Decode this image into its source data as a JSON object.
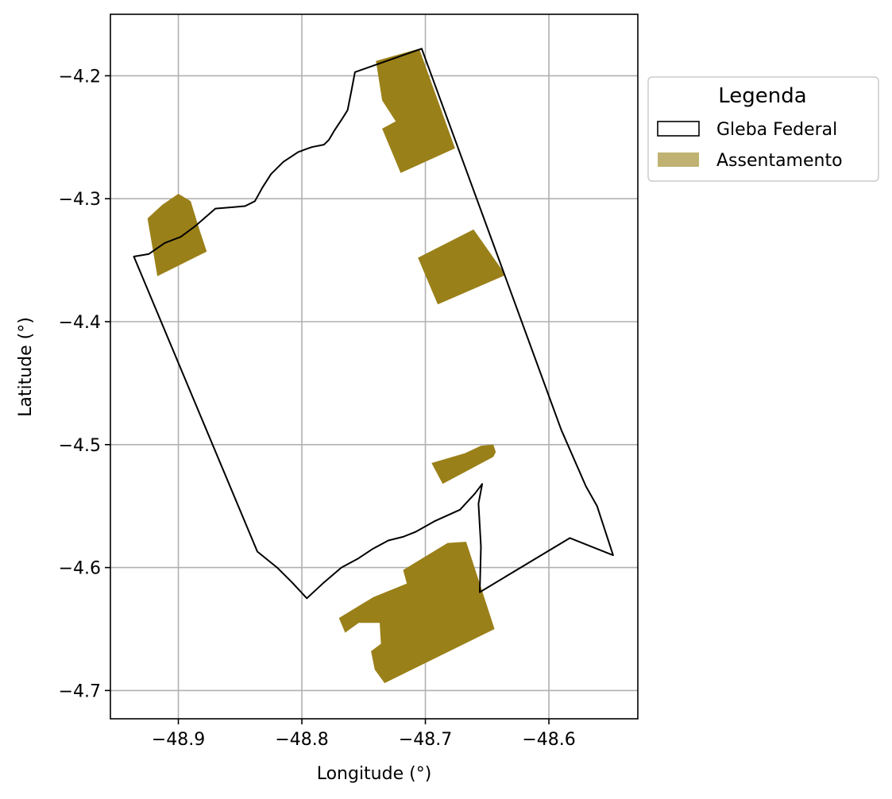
{
  "chart_data": {
    "type": "map",
    "title": "",
    "xlabel": "Longitude (°)",
    "ylabel": "Latitude (°)",
    "xlim": [
      -48.955,
      -48.528
    ],
    "ylim": [
      -4.723,
      -4.15
    ],
    "x_ticks": [
      -48.9,
      -48.8,
      -48.7,
      -48.6
    ],
    "y_ticks": [
      -4.2,
      -4.3,
      -4.4,
      -4.5,
      -4.6,
      -4.7
    ],
    "grid": true,
    "legend": {
      "title": "Legenda",
      "placement": "outside-upper-right",
      "entries": [
        {
          "label": "Gleba Federal",
          "style": "outline",
          "color": "#000000"
        },
        {
          "label": "Assentamento",
          "style": "fill",
          "color": "#9a8019"
        }
      ]
    },
    "gleba_federal": [
      [
        -48.757,
        -4.197
      ],
      [
        -48.703,
        -4.178
      ],
      [
        -48.638,
        -4.356
      ],
      [
        -48.59,
        -4.488
      ],
      [
        -48.57,
        -4.534
      ],
      [
        -48.561,
        -4.55
      ],
      [
        -48.548,
        -4.59
      ],
      [
        -48.583,
        -4.576
      ],
      [
        -48.656,
        -4.62
      ],
      [
        -48.655,
        -4.583
      ],
      [
        -48.657,
        -4.548
      ],
      [
        -48.654,
        -4.532
      ],
      [
        -48.66,
        -4.54
      ],
      [
        -48.672,
        -4.553
      ],
      [
        -48.692,
        -4.562
      ],
      [
        -48.708,
        -4.571
      ],
      [
        -48.718,
        -4.575
      ],
      [
        -48.73,
        -4.578
      ],
      [
        -48.743,
        -4.585
      ],
      [
        -48.755,
        -4.593
      ],
      [
        -48.768,
        -4.6
      ],
      [
        -48.782,
        -4.612
      ],
      [
        -48.796,
        -4.625
      ],
      [
        -48.808,
        -4.612
      ],
      [
        -48.82,
        -4.6
      ],
      [
        -48.836,
        -4.587
      ],
      [
        -48.936,
        -4.347
      ],
      [
        -48.924,
        -4.345
      ],
      [
        -48.911,
        -4.336
      ],
      [
        -48.898,
        -4.331
      ],
      [
        -48.886,
        -4.322
      ],
      [
        -48.87,
        -4.308
      ],
      [
        -48.857,
        -4.307
      ],
      [
        -48.846,
        -4.306
      ],
      [
        -48.838,
        -4.302
      ],
      [
        -48.832,
        -4.291
      ],
      [
        -48.825,
        -4.28
      ],
      [
        -48.815,
        -4.27
      ],
      [
        -48.803,
        -4.262
      ],
      [
        -48.792,
        -4.258
      ],
      [
        -48.782,
        -4.256
      ],
      [
        -48.778,
        -4.252
      ],
      [
        -48.774,
        -4.245
      ],
      [
        -48.768,
        -4.236
      ],
      [
        -48.763,
        -4.228
      ],
      [
        -48.76,
        -4.213
      ],
      [
        -48.757,
        -4.197
      ]
    ],
    "assentamentos": [
      {
        "polygon": [
          [
            -48.74,
            -4.188
          ],
          [
            -48.705,
            -4.178
          ],
          [
            -48.676,
            -4.259
          ],
          [
            -48.72,
            -4.279
          ],
          [
            -48.735,
            -4.243
          ],
          [
            -48.724,
            -4.237
          ],
          [
            -48.735,
            -4.22
          ]
        ]
      },
      {
        "polygon": [
          [
            -48.925,
            -4.316
          ],
          [
            -48.913,
            -4.305
          ],
          [
            -48.9,
            -4.296
          ],
          [
            -48.89,
            -4.302
          ],
          [
            -48.883,
            -4.325
          ],
          [
            -48.877,
            -4.343
          ],
          [
            -48.917,
            -4.363
          ]
        ]
      },
      {
        "polygon": [
          [
            -48.706,
            -4.348
          ],
          [
            -48.661,
            -4.325
          ],
          [
            -48.635,
            -4.362
          ],
          [
            -48.69,
            -4.386
          ]
        ]
      },
      {
        "polygon": [
          [
            -48.695,
            -4.515
          ],
          [
            -48.668,
            -4.507
          ],
          [
            -48.655,
            -4.501
          ],
          [
            -48.645,
            -4.5
          ],
          [
            -48.643,
            -4.506
          ],
          [
            -48.645,
            -4.51
          ],
          [
            -48.686,
            -4.532
          ]
        ]
      },
      {
        "polygon": [
          [
            -48.718,
            -4.602
          ],
          [
            -48.682,
            -4.58
          ],
          [
            -48.667,
            -4.579
          ],
          [
            -48.644,
            -4.65
          ],
          [
            -48.733,
            -4.694
          ],
          [
            -48.741,
            -4.683
          ],
          [
            -48.744,
            -4.668
          ],
          [
            -48.736,
            -4.662
          ],
          [
            -48.737,
            -4.645
          ],
          [
            -48.754,
            -4.645
          ],
          [
            -48.765,
            -4.653
          ],
          [
            -48.77,
            -4.641
          ],
          [
            -48.742,
            -4.624
          ],
          [
            -48.715,
            -4.613
          ]
        ]
      }
    ]
  }
}
